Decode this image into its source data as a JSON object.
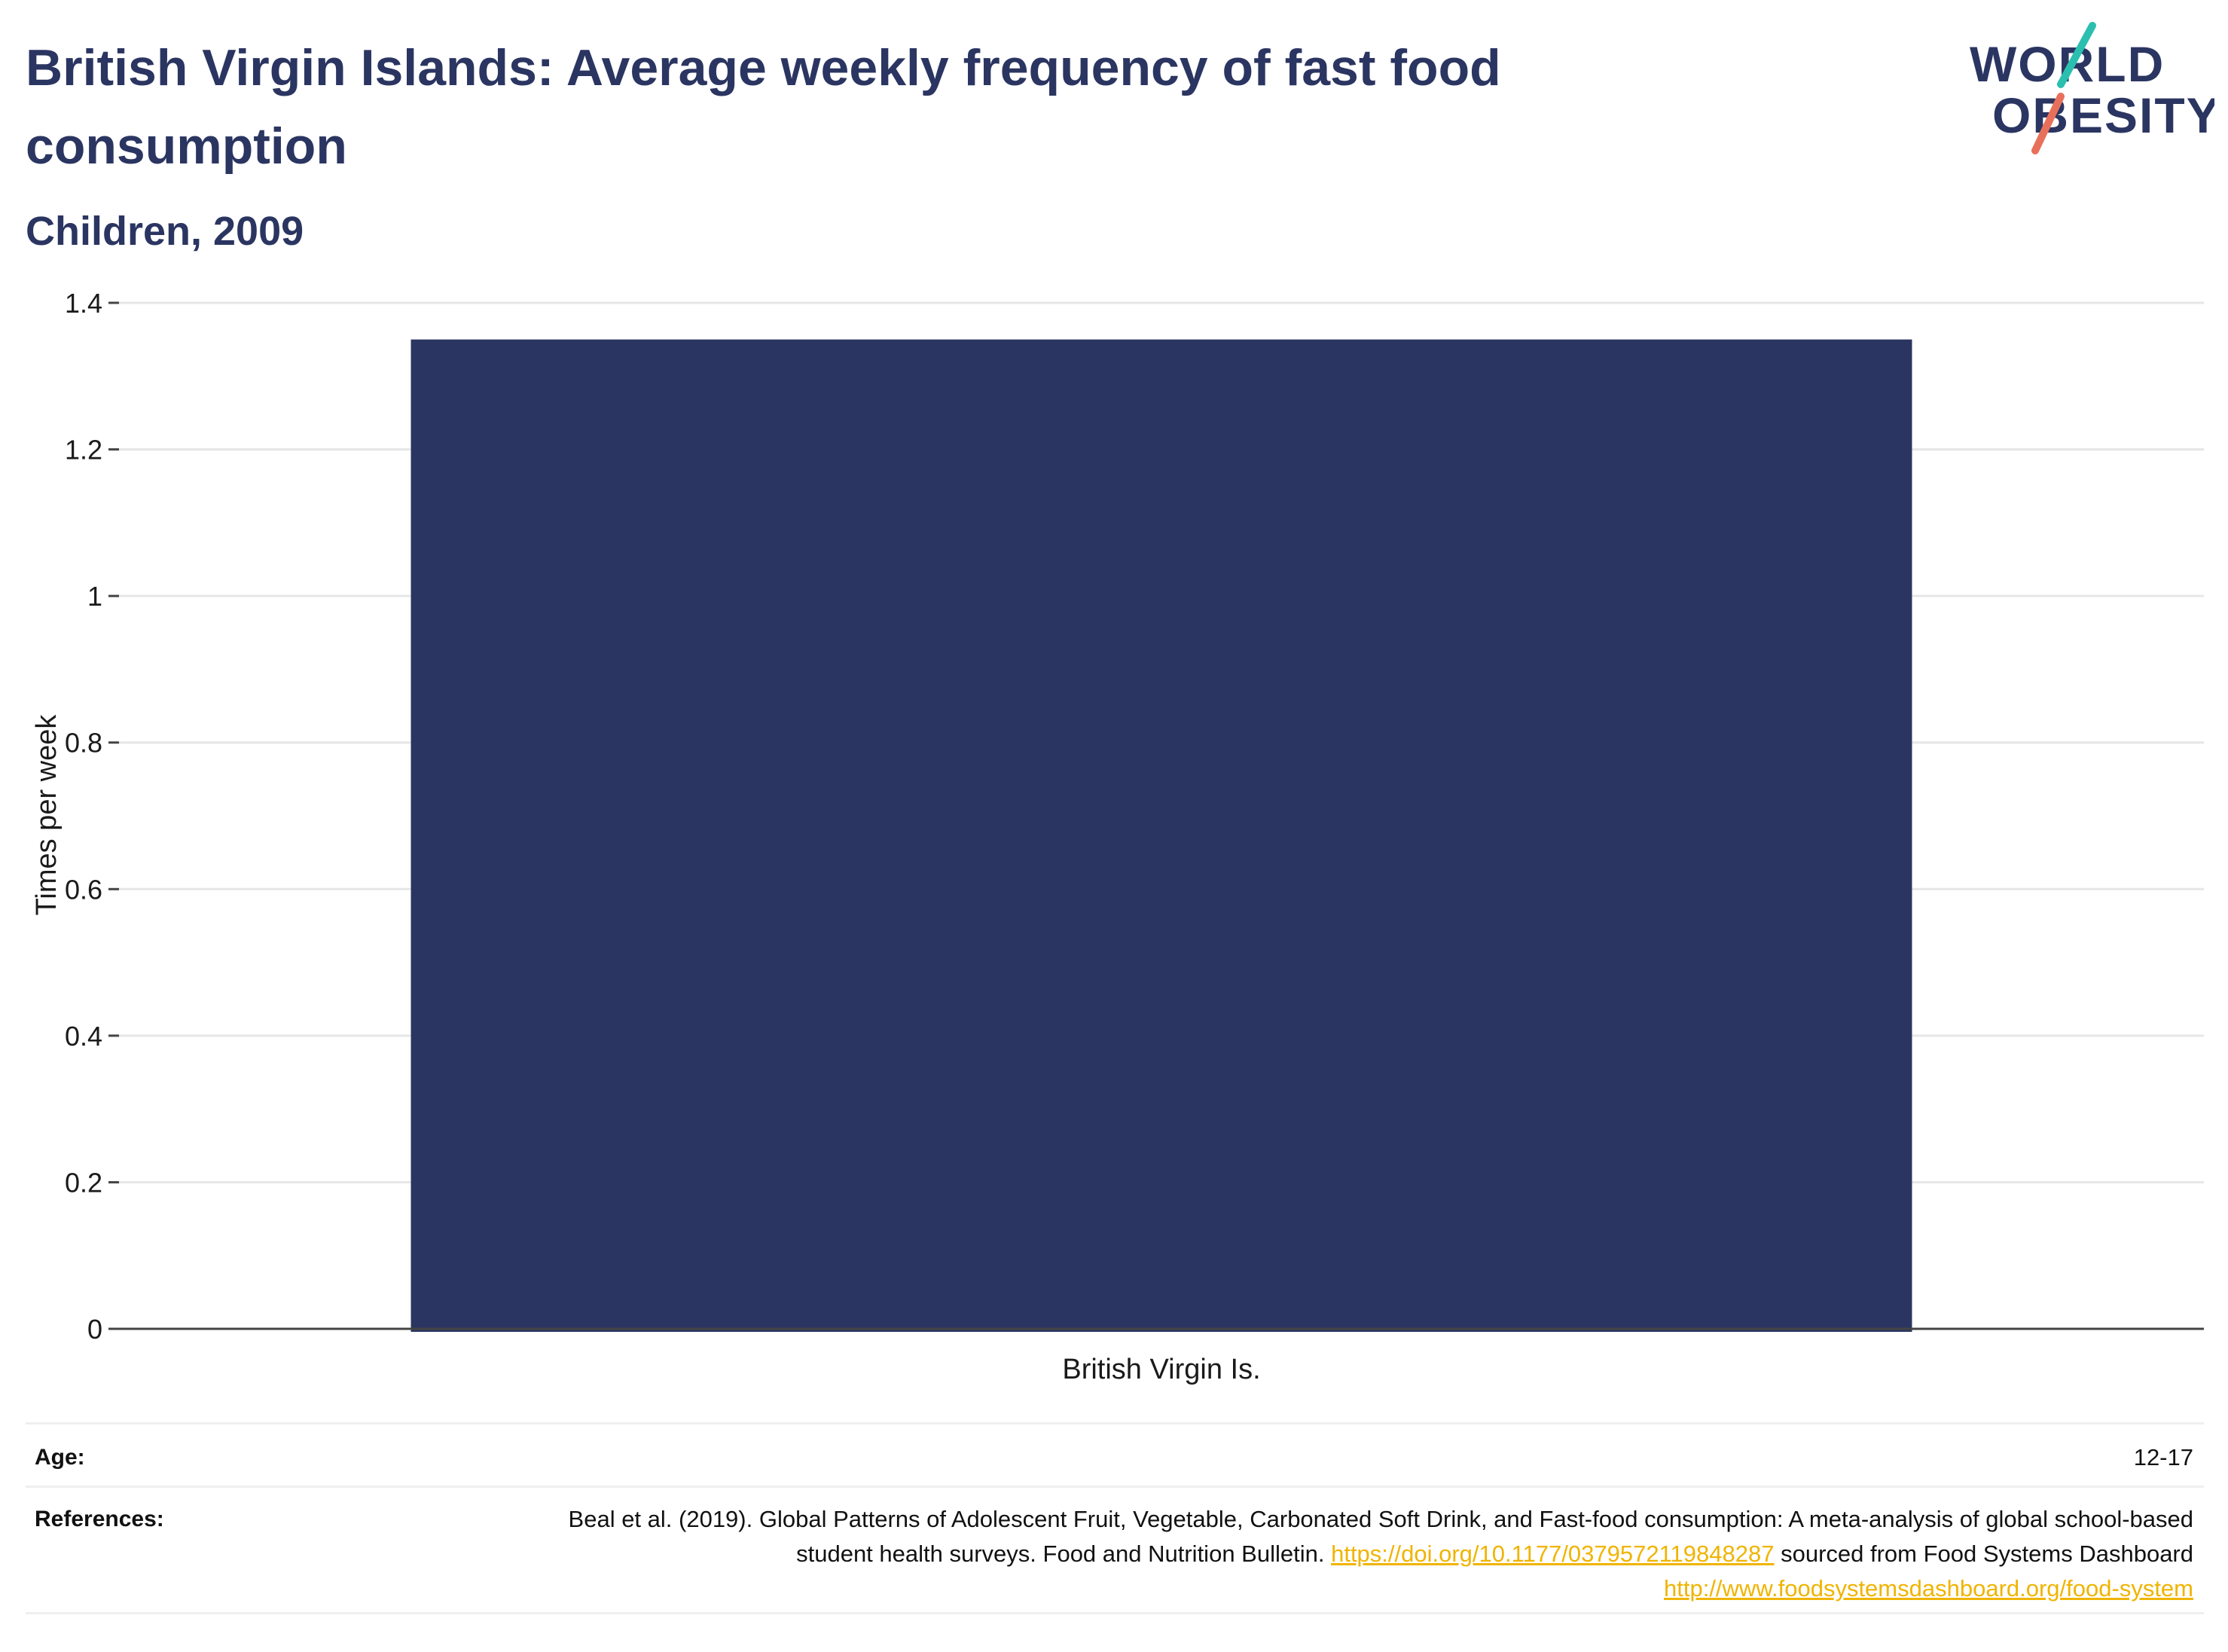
{
  "header": {
    "title": "British Virgin Islands: Average weekly frequency of fast food consumption",
    "subtitle": "Children, 2009"
  },
  "logo": {
    "line1": "WORLD",
    "line2": "OBESITY",
    "colors": {
      "text": "#2b3561",
      "slash_top": "#2bbfb0",
      "slash_bottom": "#e8705a"
    }
  },
  "chart_data": {
    "type": "bar",
    "categories": [
      "British Virgin Is."
    ],
    "values": [
      1.35
    ],
    "title": "British Virgin Islands: Average weekly frequency of fast food consumption",
    "subtitle": "Children, 2009",
    "xlabel": "",
    "ylabel": "Times per week",
    "ylim": [
      0,
      1.4
    ],
    "yticks": [
      0,
      0.2,
      0.4,
      0.6,
      0.8,
      1,
      1.2,
      1.4
    ],
    "ytick_labels": [
      "0",
      "0.2",
      "0.4",
      "0.6",
      "0.8",
      "1",
      "1.2",
      "1.4"
    ],
    "grid": true,
    "legend": "none",
    "bar_color": "#2b3561"
  },
  "meta": {
    "age_label": "Age:",
    "age_value": "12-17",
    "references_label": "References:",
    "ref_text_1": "Beal et al. (2019). Global Patterns of Adolescent Fruit, Vegetable, Carbonated Soft Drink, and Fast-food consumption: A meta-analysis of global school-based student health surveys. Food and Nutrition Bulletin.",
    "ref_link_1": "https://doi.org/10.1177/0379572119848287",
    "ref_text_2": "sourced from Food Systems Dashboard",
    "ref_link_2": "http://www.foodsystemsdashboard.org/food-system"
  }
}
